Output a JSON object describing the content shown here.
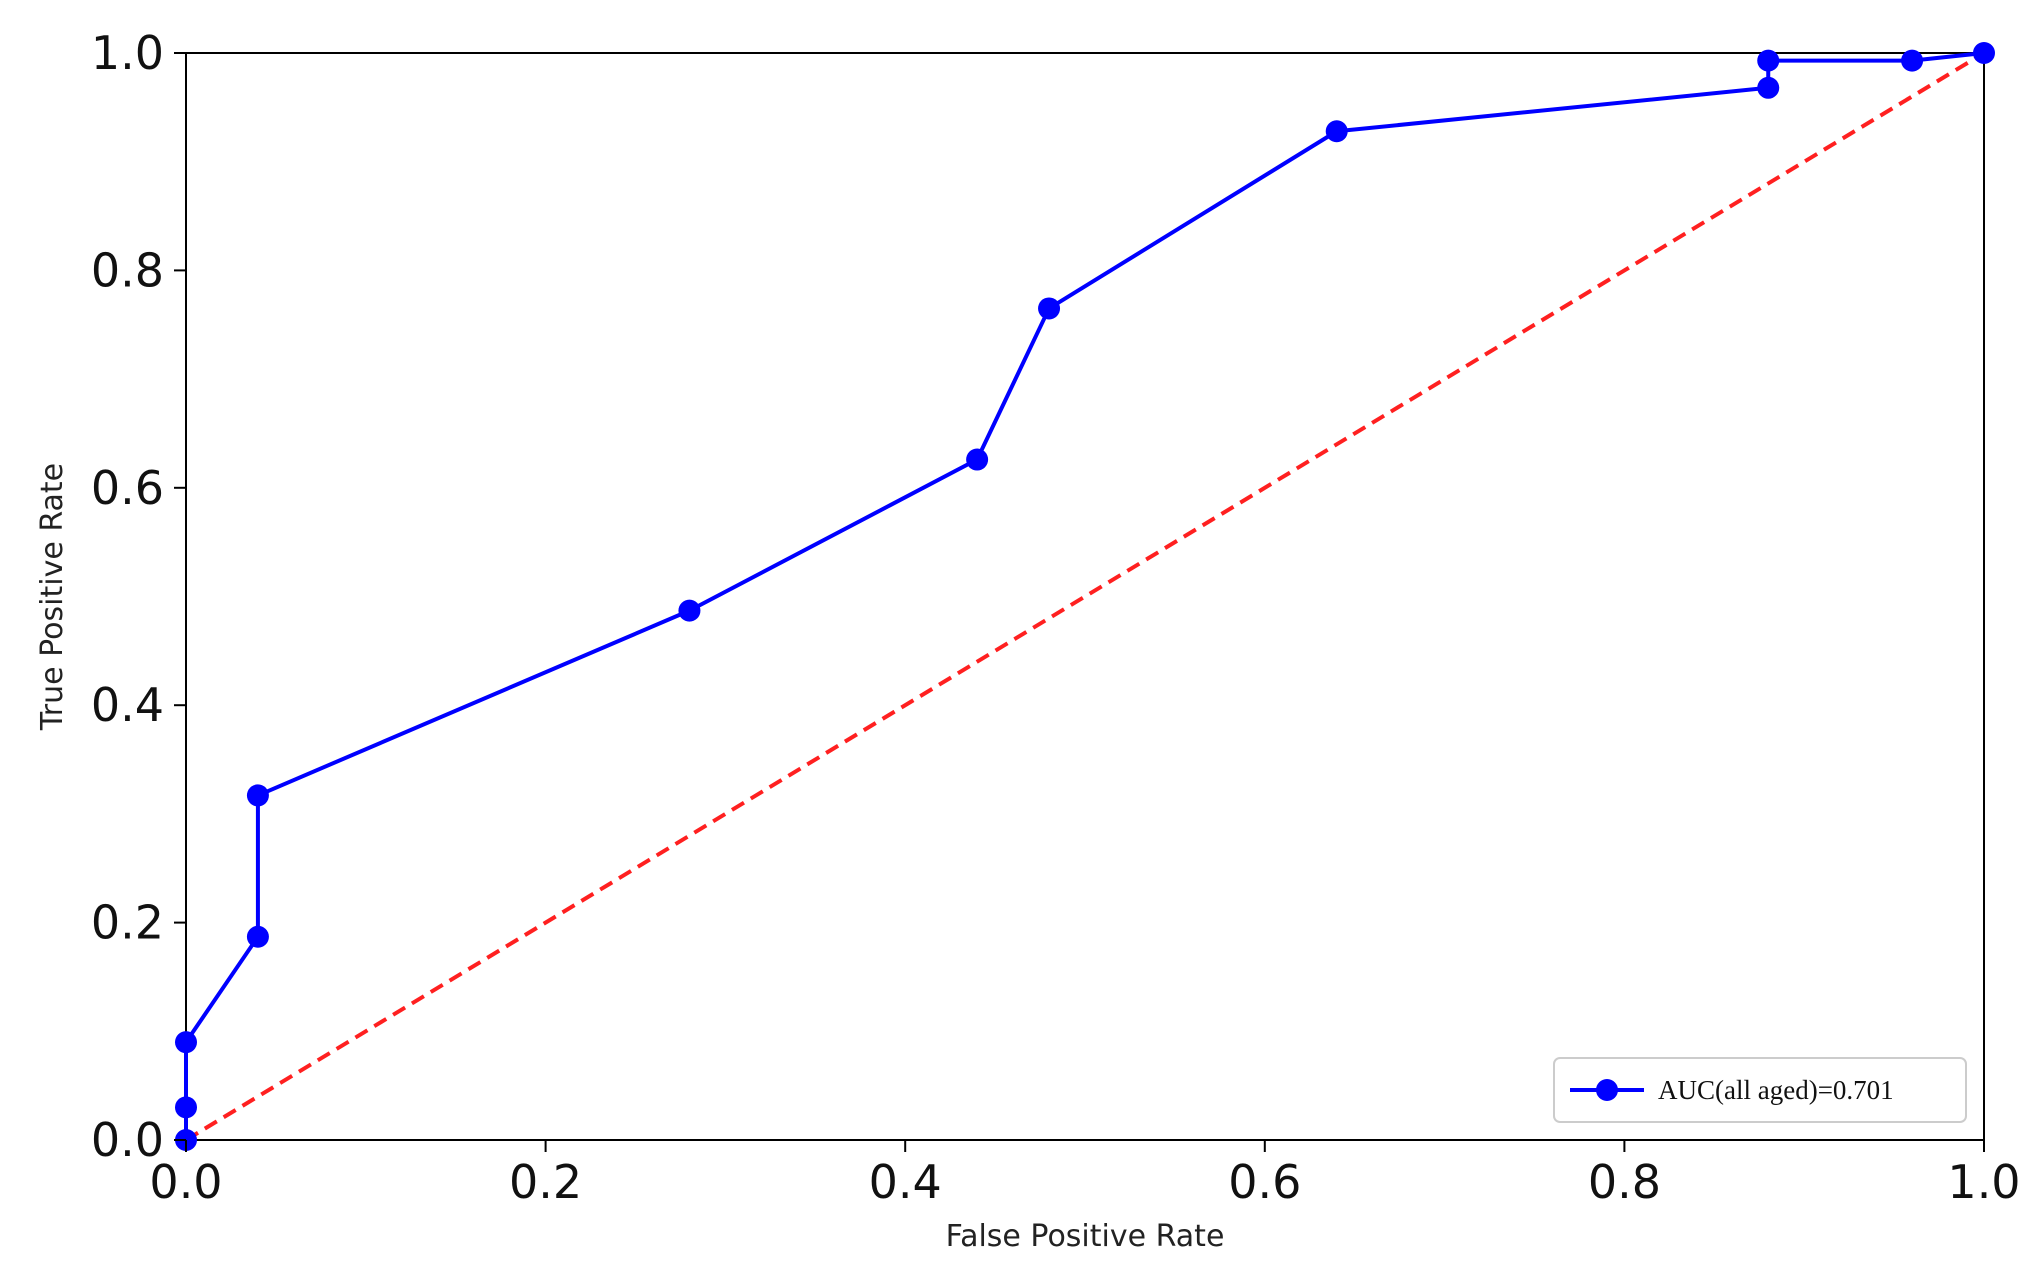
{
  "chart_data": {
    "type": "line",
    "title": "",
    "xlabel": "False Positive Rate",
    "ylabel": "True Positive Rate",
    "xlim": [
      0.0,
      1.0
    ],
    "ylim": [
      0.0,
      1.0
    ],
    "xticks": [
      "0.0",
      "0.2",
      "0.4",
      "0.6",
      "0.8",
      "1.0"
    ],
    "yticks": [
      "0.0",
      "0.2",
      "0.4",
      "0.6",
      "0.8",
      "1.0"
    ],
    "grid": false,
    "legend_position": "lower-right",
    "series": [
      {
        "name": "AUC(all aged)=0.701",
        "color": "#0000ff",
        "marker": "circle",
        "x": [
          0.0,
          0.0,
          0.0,
          0.04,
          0.04,
          0.28,
          0.44,
          0.48,
          0.64,
          0.88,
          0.88,
          0.96,
          1.0
        ],
        "y": [
          0.0,
          0.03,
          0.09,
          0.187,
          0.317,
          0.487,
          0.626,
          0.765,
          0.928,
          0.968,
          0.993,
          0.993,
          1.0
        ]
      }
    ],
    "reference_line": {
      "color": "#ff2020",
      "style": "dashed",
      "x": [
        0.0,
        1.0
      ],
      "y": [
        0.0,
        1.0
      ]
    }
  }
}
